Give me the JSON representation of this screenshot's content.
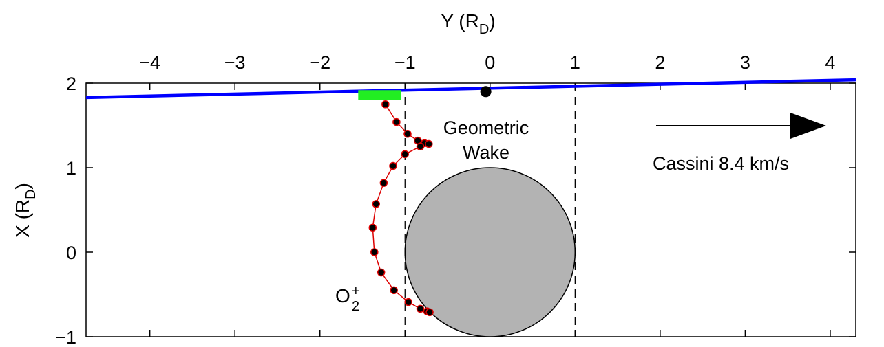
{
  "chart_data": {
    "type": "scatter",
    "title": "",
    "xlabel": "Y (R",
    "xlabel_sub": "D",
    "xlabel_close": ")",
    "ylabel": "X (R",
    "ylabel_sub": "D",
    "ylabel_close": ")",
    "xlim": [
      -4.75,
      4.3
    ],
    "ylim": [
      -1,
      2
    ],
    "x_ticks": [
      -4,
      -3,
      -2,
      -1,
      0,
      1,
      2,
      3,
      4
    ],
    "x_tick_labels": [
      "−4",
      "−3",
      "−2",
      "−1",
      "0",
      "1",
      "2",
      "3",
      "4"
    ],
    "y_ticks": [
      -1,
      0,
      1,
      2
    ],
    "y_tick_labels": [
      "−1",
      "0",
      "1",
      "2"
    ],
    "grid": false,
    "trajectory": {
      "color": "#0000ff",
      "start": [
        -4.75,
        1.83
      ],
      "end": [
        4.3,
        2.04
      ]
    },
    "highlight_segment": {
      "color": "#22ee22",
      "y_range": [
        -1.55,
        -1.05
      ],
      "x": 1.86
    },
    "closest_approach": {
      "y": -0.05,
      "x": 1.9
    },
    "body": {
      "center": [
        0,
        0
      ],
      "radius": 1,
      "fill": "#b3b3b3"
    },
    "wake_lines": [
      -1,
      1
    ],
    "series": [
      {
        "name": "O",
        "name_sub": "2",
        "name_sup": "+",
        "color": "#dd0000",
        "points": [
          [
            -1.23,
            1.75
          ],
          [
            -1.1,
            1.54
          ],
          [
            -0.97,
            1.4
          ],
          [
            -0.85,
            1.32
          ],
          [
            -0.77,
            1.29
          ],
          [
            -0.72,
            1.28
          ],
          [
            -0.82,
            1.25
          ],
          [
            -1.0,
            1.16
          ],
          [
            -1.14,
            1.02
          ],
          [
            -1.25,
            0.82
          ],
          [
            -1.34,
            0.57
          ],
          [
            -1.38,
            0.29
          ],
          [
            -1.36,
            0.0
          ],
          [
            -1.28,
            -0.24
          ],
          [
            -1.13,
            -0.45
          ],
          [
            -0.96,
            -0.59
          ],
          [
            -0.82,
            -0.67
          ],
          [
            -0.74,
            -0.7
          ],
          [
            -0.71,
            -0.71
          ]
        ]
      }
    ],
    "annotations": {
      "wake_line1": "Geometric",
      "wake_line2": "Wake",
      "velocity": "Cassini 8.4 km/s"
    }
  }
}
